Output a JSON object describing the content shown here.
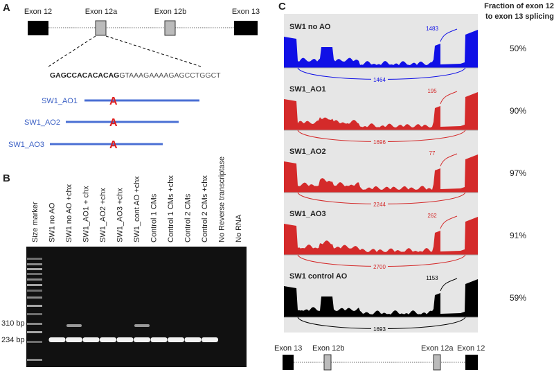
{
  "panel_labels": {
    "a": "A",
    "b": "B",
    "c": "C"
  },
  "panel_a": {
    "exons": [
      "Exon 12",
      "Exon 12a",
      "Exon 12b",
      "Exon 13"
    ],
    "sequence": {
      "exon_part": "GAGCCACACACAG",
      "splice_site": "GT",
      "intron_part": "AAAGAAAAGAGCCTGGCT"
    },
    "oligos": [
      {
        "name": "SW1_AO1",
        "mark": "A"
      },
      {
        "name": "SW1_AO2",
        "mark": "A"
      },
      {
        "name": "SW1_AO3",
        "mark": "A"
      }
    ]
  },
  "panel_b": {
    "lanes": [
      "Size marker",
      "SW1 no AO",
      "SW1 no AO +chx",
      "SW1_AO1 + chx",
      "SW1_AO2 +chx",
      "SW1_AO3 +chx",
      "SW1_cont AO +chx",
      "Control 1 CMs",
      "Control 1 CMs +chx",
      "Control 2 CMs",
      "Control 2 CMs +chx",
      "No Reverse transcriptase",
      "No RNA"
    ],
    "size_labels": [
      "310 bp",
      "234 bp"
    ]
  },
  "panel_c": {
    "header": [
      "Fraction of exon 12",
      "to exon 13 splicing"
    ],
    "tracks": [
      {
        "name": "SW1 no AO",
        "color": "#1010e6",
        "junction_top": "1483",
        "junction_bottom": "1464",
        "fraction": "50%"
      },
      {
        "name": "SW1_AO1",
        "color": "#d42a2a",
        "junction_top": "195",
        "junction_bottom": "1696",
        "fraction": "90%"
      },
      {
        "name": "SW1_AO2",
        "color": "#d42a2a",
        "junction_top": "77",
        "junction_bottom": "2244",
        "fraction": "97%"
      },
      {
        "name": "SW1_AO3",
        "color": "#d42a2a",
        "junction_top": "262",
        "junction_bottom": "2700",
        "fraction": "91%"
      },
      {
        "name": "SW1 control AO",
        "color": "#000000",
        "junction_top": "1153",
        "junction_bottom": "1693",
        "fraction": "59%"
      }
    ],
    "gene_model": [
      "Exon 13",
      "Exon 12b",
      "Exon 12a",
      "Exon 12"
    ]
  }
}
